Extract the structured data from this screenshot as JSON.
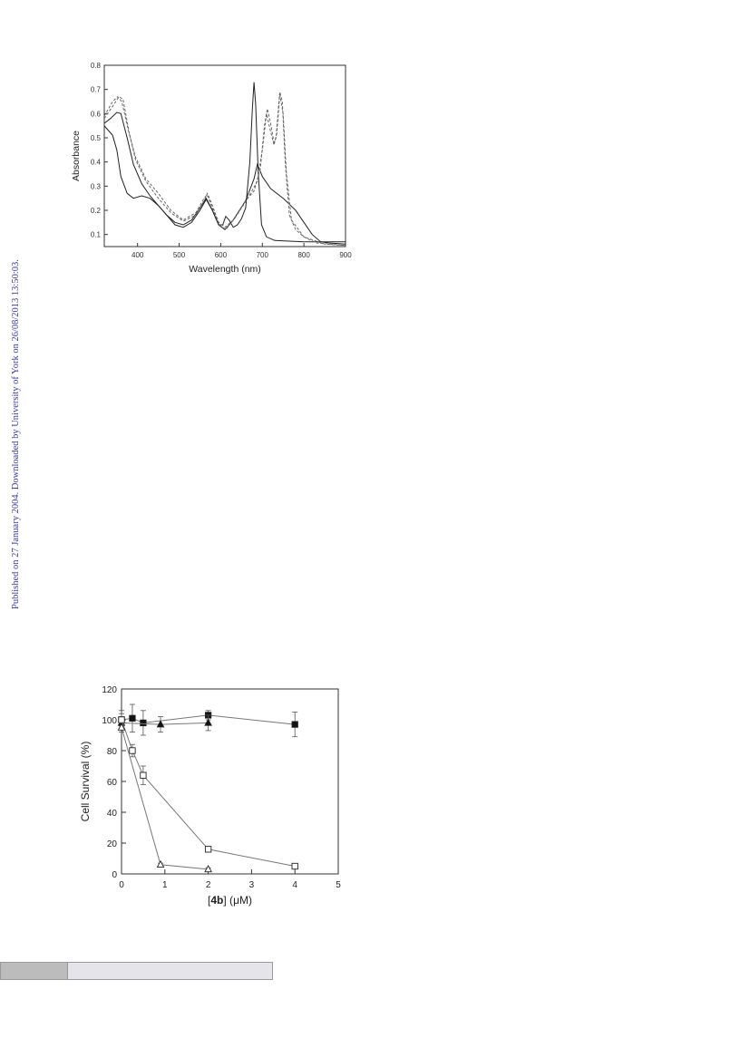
{
  "margin_note": "Published on 27 January 2004. Downloaded by University of York on 26/08/2013 13:50:03.",
  "chart_data": [
    {
      "type": "line",
      "title": "",
      "xlabel": "Wavelength (nm)",
      "ylabel": "Absorbance",
      "xlim": [
        320,
        900
      ],
      "ylim": [
        0.05,
        0.8
      ],
      "xticks": [
        400,
        500,
        600,
        700,
        800,
        900
      ],
      "yticks": [
        0.1,
        0.2,
        0.3,
        0.4,
        0.5,
        0.6,
        0.7,
        0.8
      ],
      "grid": false,
      "series": [
        {
          "style": "solid",
          "points": [
            [
              320,
              0.55
            ],
            [
              330,
              0.53
            ],
            [
              340,
              0.51
            ],
            [
              350,
              0.45
            ],
            [
              360,
              0.34
            ],
            [
              375,
              0.27
            ],
            [
              390,
              0.25
            ],
            [
              410,
              0.26
            ],
            [
              430,
              0.25
            ],
            [
              450,
              0.22
            ],
            [
              470,
              0.18
            ],
            [
              490,
              0.14
            ],
            [
              510,
              0.13
            ],
            [
              530,
              0.15
            ],
            [
              550,
              0.2
            ],
            [
              565,
              0.245
            ],
            [
              580,
              0.2
            ],
            [
              595,
              0.14
            ],
            [
              605,
              0.14
            ],
            [
              612,
              0.175
            ],
            [
              620,
              0.16
            ],
            [
              630,
              0.13
            ],
            [
              640,
              0.14
            ],
            [
              650,
              0.165
            ],
            [
              660,
              0.21
            ],
            [
              670,
              0.4
            ],
            [
              676,
              0.62
            ],
            [
              680,
              0.73
            ],
            [
              684,
              0.64
            ],
            [
              690,
              0.36
            ],
            [
              698,
              0.14
            ],
            [
              710,
              0.09
            ],
            [
              730,
              0.075
            ],
            [
              800,
              0.07
            ],
            [
              900,
              0.07
            ]
          ]
        },
        {
          "style": "solid",
          "points": [
            [
              320,
              0.56
            ],
            [
              335,
              0.58
            ],
            [
              350,
              0.605
            ],
            [
              360,
              0.6
            ],
            [
              375,
              0.5
            ],
            [
              390,
              0.39
            ],
            [
              410,
              0.31
            ],
            [
              430,
              0.26
            ],
            [
              450,
              0.22
            ],
            [
              470,
              0.18
            ],
            [
              490,
              0.15
            ],
            [
              510,
              0.14
            ],
            [
              530,
              0.16
            ],
            [
              550,
              0.21
            ],
            [
              565,
              0.25
            ],
            [
              580,
              0.2
            ],
            [
              595,
              0.14
            ],
            [
              610,
              0.12
            ],
            [
              630,
              0.16
            ],
            [
              660,
              0.24
            ],
            [
              680,
              0.33
            ],
            [
              688,
              0.39
            ],
            [
              700,
              0.34
            ],
            [
              720,
              0.29
            ],
            [
              750,
              0.25
            ],
            [
              780,
              0.2
            ],
            [
              800,
              0.15
            ],
            [
              820,
              0.1
            ],
            [
              840,
              0.07
            ],
            [
              860,
              0.065
            ],
            [
              900,
              0.06
            ]
          ]
        },
        {
          "style": "dashed",
          "points": [
            [
              320,
              0.58
            ],
            [
              340,
              0.63
            ],
            [
              355,
              0.67
            ],
            [
              365,
              0.66
            ],
            [
              380,
              0.52
            ],
            [
              395,
              0.41
            ],
            [
              420,
              0.32
            ],
            [
              450,
              0.25
            ],
            [
              480,
              0.19
            ],
            [
              510,
              0.155
            ],
            [
              540,
              0.18
            ],
            [
              560,
              0.24
            ],
            [
              568,
              0.27
            ],
            [
              580,
              0.22
            ],
            [
              595,
              0.15
            ],
            [
              610,
              0.13
            ],
            [
              630,
              0.16
            ],
            [
              660,
              0.24
            ],
            [
              680,
              0.28
            ],
            [
              695,
              0.37
            ],
            [
              705,
              0.55
            ],
            [
              712,
              0.62
            ],
            [
              720,
              0.56
            ],
            [
              728,
              0.48
            ],
            [
              733,
              0.5
            ],
            [
              742,
              0.69
            ],
            [
              748,
              0.65
            ],
            [
              755,
              0.4
            ],
            [
              765,
              0.18
            ],
            [
              780,
              0.12
            ],
            [
              800,
              0.09
            ],
            [
              830,
              0.065
            ],
            [
              900,
              0.055
            ]
          ]
        },
        {
          "style": "dashed",
          "points": [
            [
              320,
              0.59
            ],
            [
              340,
              0.65
            ],
            [
              352,
              0.67
            ],
            [
              362,
              0.65
            ],
            [
              378,
              0.53
            ],
            [
              395,
              0.42
            ],
            [
              420,
              0.33
            ],
            [
              450,
              0.27
            ],
            [
              480,
              0.2
            ],
            [
              510,
              0.16
            ],
            [
              540,
              0.19
            ],
            [
              560,
              0.25
            ],
            [
              567,
              0.265
            ],
            [
              580,
              0.21
            ],
            [
              597,
              0.14
            ],
            [
              612,
              0.12
            ],
            [
              635,
              0.17
            ],
            [
              665,
              0.25
            ],
            [
              688,
              0.32
            ],
            [
              700,
              0.45
            ],
            [
              710,
              0.6
            ],
            [
              718,
              0.54
            ],
            [
              728,
              0.47
            ],
            [
              735,
              0.52
            ],
            [
              742,
              0.68
            ],
            [
              750,
              0.6
            ],
            [
              758,
              0.35
            ],
            [
              770,
              0.16
            ],
            [
              800,
              0.09
            ],
            [
              850,
              0.06
            ],
            [
              900,
              0.055
            ]
          ]
        }
      ]
    },
    {
      "type": "scatter",
      "title": "",
      "xlabel_bold": "4b",
      "xlabel_open": "[",
      "xlabel_close": "] (",
      "xlabel_unit": "μM)",
      "ylabel": "Cell Survival (%)",
      "xlim": [
        0,
        5
      ],
      "ylim": [
        0,
        120
      ],
      "xticks": [
        0,
        1,
        2,
        3,
        4,
        5
      ],
      "yticks": [
        0,
        20,
        40,
        60,
        80,
        100,
        120
      ],
      "grid": false,
      "series": [
        {
          "marker": "filled-square",
          "x": [
            0,
            0.25,
            0.5,
            2,
            4
          ],
          "y": [
            100,
            101,
            98,
            103,
            97
          ],
          "err": [
            6,
            9,
            8,
            3,
            8
          ]
        },
        {
          "marker": "filled-triangle",
          "x": [
            0,
            0.9,
            2
          ],
          "y": [
            98,
            97,
            98
          ],
          "err": [
            4,
            5,
            5
          ]
        },
        {
          "marker": "open-square",
          "x": [
            0,
            0.25,
            0.5,
            2,
            4
          ],
          "y": [
            100,
            80,
            64,
            16,
            5
          ],
          "err": [
            4,
            4,
            6,
            1,
            1
          ]
        },
        {
          "marker": "open-triangle",
          "x": [
            0,
            0.9,
            2
          ],
          "y": [
            95,
            6,
            3
          ],
          "err": [
            3,
            1,
            1
          ]
        }
      ]
    }
  ]
}
